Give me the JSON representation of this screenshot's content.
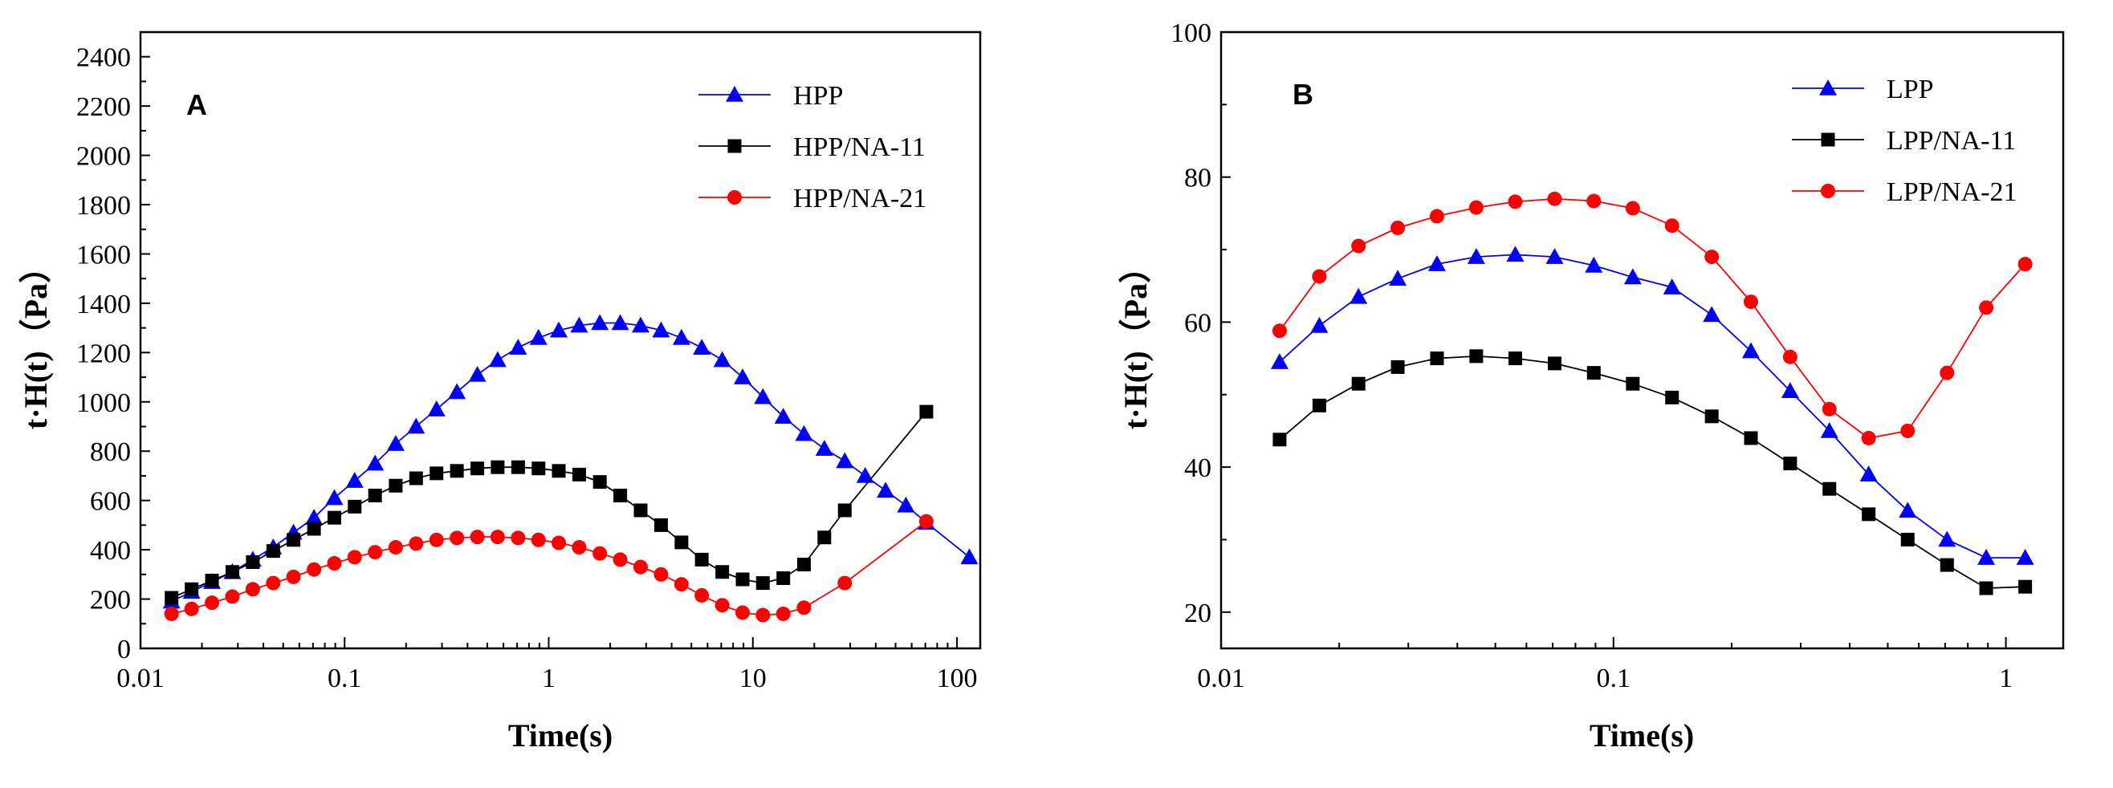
{
  "chart_data": [
    {
      "type": "line",
      "panel_label": "A",
      "xscale": "log",
      "xlim": [
        0.01,
        130
      ],
      "ylim": [
        0,
        2500
      ],
      "xticks": [
        0.01,
        0.1,
        1,
        10,
        100
      ],
      "xtick_labels": [
        "0.01",
        "0.1",
        "1",
        "10",
        "100"
      ],
      "yticks": [
        0,
        200,
        400,
        600,
        800,
        1000,
        1200,
        1400,
        1600,
        1800,
        2000,
        2200,
        2400
      ],
      "ytick_labels": [
        "0",
        "200",
        "400",
        "600",
        "800",
        "1000",
        "1200",
        "1400",
        "1600",
        "1800",
        "2000",
        "2200",
        "2400"
      ],
      "xlabel": "Time(s)",
      "ylabel": "t·H(t)（Pa）",
      "legend_position": "top-right",
      "series": [
        {
          "name": "HPP",
          "color": "#0000ff",
          "marker": "triangle",
          "x": [
            0.0142,
            0.0178,
            0.0224,
            0.0282,
            0.0355,
            0.0447,
            0.0562,
            0.0708,
            0.0891,
            0.112,
            0.141,
            0.178,
            0.224,
            0.282,
            0.355,
            0.447,
            0.562,
            0.708,
            0.891,
            1.12,
            1.41,
            1.78,
            2.24,
            2.82,
            3.55,
            4.47,
            5.62,
            7.08,
            8.91,
            11.2,
            14.1,
            17.8,
            22.4,
            28.2,
            35.5,
            44.7,
            56.2,
            70.8,
            115
          ],
          "y": [
            190,
            230,
            270,
            310,
            360,
            410,
            470,
            530,
            610,
            680,
            750,
            830,
            900,
            970,
            1040,
            1110,
            1170,
            1220,
            1260,
            1290,
            1310,
            1320,
            1320,
            1310,
            1290,
            1260,
            1220,
            1170,
            1100,
            1020,
            940,
            870,
            810,
            760,
            700,
            640,
            580,
            510,
            370
          ]
        },
        {
          "name": "HPP/NA-11",
          "color": "#000000",
          "marker": "square",
          "x": [
            0.0142,
            0.0178,
            0.0224,
            0.0282,
            0.0355,
            0.0447,
            0.0562,
            0.0708,
            0.0891,
            0.112,
            0.141,
            0.178,
            0.224,
            0.282,
            0.355,
            0.447,
            0.562,
            0.708,
            0.891,
            1.12,
            1.41,
            1.78,
            2.24,
            2.82,
            3.55,
            4.47,
            5.62,
            7.08,
            8.91,
            11.2,
            14.1,
            17.8,
            22.4,
            28.2,
            70.8
          ],
          "y": [
            205,
            240,
            275,
            310,
            350,
            395,
            440,
            485,
            530,
            575,
            620,
            660,
            690,
            710,
            720,
            730,
            735,
            735,
            730,
            720,
            705,
            675,
            620,
            560,
            500,
            430,
            360,
            310,
            280,
            265,
            285,
            340,
            450,
            560,
            960
          ]
        },
        {
          "name": "HPP/NA-21",
          "color": "#ff0000",
          "marker": "circle",
          "x": [
            0.0142,
            0.0178,
            0.0224,
            0.0282,
            0.0355,
            0.0447,
            0.0562,
            0.0708,
            0.0891,
            0.112,
            0.141,
            0.178,
            0.224,
            0.282,
            0.355,
            0.447,
            0.562,
            0.708,
            0.891,
            1.12,
            1.41,
            1.78,
            2.24,
            2.82,
            3.55,
            4.47,
            5.62,
            7.08,
            8.91,
            11.2,
            14.1,
            17.8,
            28.2,
            70.8
          ],
          "y": [
            140,
            160,
            185,
            210,
            240,
            265,
            290,
            320,
            345,
            370,
            390,
            410,
            425,
            440,
            448,
            452,
            452,
            448,
            440,
            428,
            410,
            385,
            360,
            330,
            300,
            260,
            215,
            175,
            145,
            135,
            140,
            165,
            265,
            515
          ]
        }
      ]
    },
    {
      "type": "line",
      "panel_label": "B",
      "xscale": "log",
      "xlim": [
        0.01,
        1.4
      ],
      "ylim": [
        15,
        100
      ],
      "xticks": [
        0.01,
        0.1,
        1
      ],
      "xtick_labels": [
        "0.01",
        "0.1",
        "1"
      ],
      "yticks": [
        20,
        40,
        60,
        80,
        100
      ],
      "ytick_labels": [
        "20",
        "40",
        "60",
        "80",
        "100"
      ],
      "xlabel": "Time(s)",
      "ylabel": "t·H(t)（Pa）",
      "legend_position": "top-right",
      "series": [
        {
          "name": "LPP",
          "color": "#0000ff",
          "marker": "triangle",
          "x": [
            0.0141,
            0.0178,
            0.0224,
            0.0282,
            0.0355,
            0.0447,
            0.0562,
            0.0708,
            0.0891,
            0.112,
            0.141,
            0.178,
            0.224,
            0.282,
            0.355,
            0.447,
            0.562,
            0.708,
            0.891,
            1.12
          ],
          "y": [
            54.5,
            59.5,
            63.5,
            66,
            68,
            69,
            69.3,
            69,
            67.8,
            66.2,
            64.8,
            61,
            56,
            50.5,
            45,
            39,
            34,
            30,
            27.5,
            27.5
          ]
        },
        {
          "name": "LPP/NA-11",
          "color": "#000000",
          "marker": "square",
          "x": [
            0.0141,
            0.0178,
            0.0224,
            0.0282,
            0.0355,
            0.0447,
            0.0562,
            0.0708,
            0.0891,
            0.112,
            0.141,
            0.178,
            0.224,
            0.282,
            0.355,
            0.447,
            0.562,
            0.708,
            0.891,
            1.12
          ],
          "y": [
            43.8,
            48.5,
            51.5,
            53.8,
            55,
            55.3,
            55,
            54.3,
            53,
            51.5,
            49.6,
            47,
            44,
            40.5,
            37,
            33.5,
            30,
            26.5,
            23.3,
            23.5
          ]
        },
        {
          "name": "LPP/NA-21",
          "color": "#ff0000",
          "marker": "circle",
          "x": [
            0.0141,
            0.0178,
            0.0224,
            0.0282,
            0.0355,
            0.0447,
            0.0562,
            0.0708,
            0.0891,
            0.112,
            0.141,
            0.178,
            0.224,
            0.282,
            0.355,
            0.447,
            0.562,
            0.708,
            0.891,
            1.12
          ],
          "y": [
            58.8,
            66.3,
            70.5,
            73,
            74.6,
            75.8,
            76.6,
            77,
            76.7,
            75.7,
            73.3,
            69,
            62.8,
            55.2,
            48,
            44,
            45,
            53,
            62,
            68
          ]
        }
      ]
    }
  ]
}
